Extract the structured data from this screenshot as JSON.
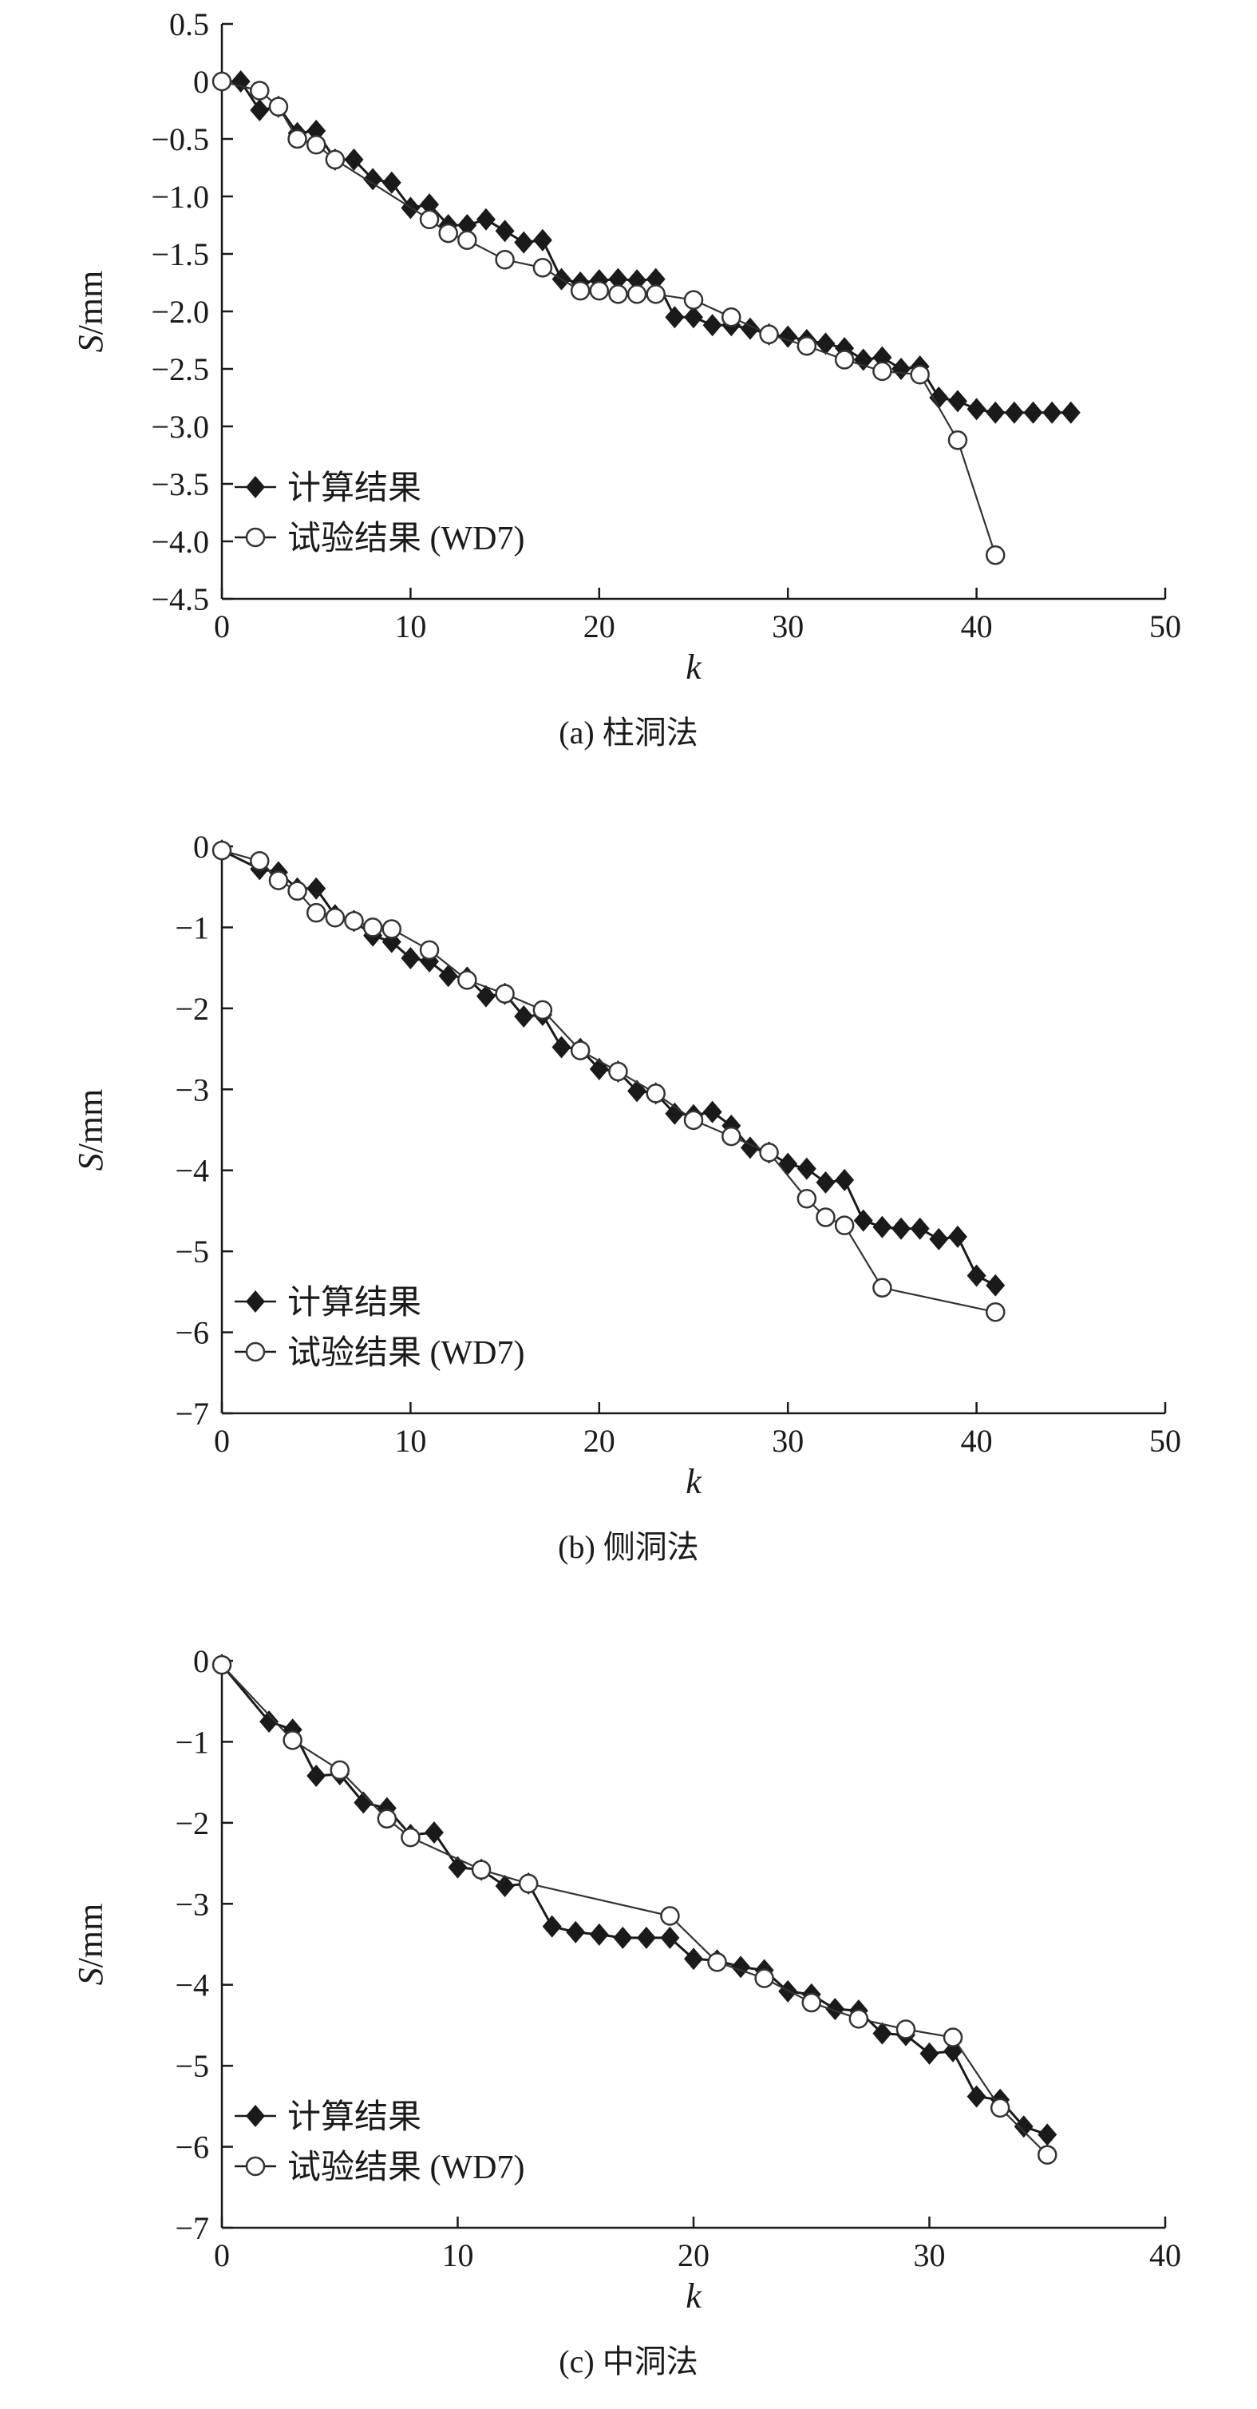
{
  "chart_data": [
    {
      "type": "line",
      "caption": "(a) 柱洞法",
      "xlabel": "k",
      "ylabel": "S/mm",
      "xlim": [
        0,
        50
      ],
      "ylim": [
        -4.5,
        0.5
      ],
      "xticks": [
        0,
        10,
        20,
        30,
        40,
        50
      ],
      "xtick_labels": [
        "0",
        "10",
        "20",
        "30",
        "40",
        "50"
      ],
      "yticks": [
        0.5,
        0,
        -0.5,
        -1.0,
        -1.5,
        -2.0,
        -2.5,
        -3.0,
        -3.5,
        -4.0,
        -4.5
      ],
      "ytick_labels": [
        "0.5",
        "0",
        "−0.5",
        "−1.0",
        "−1.5",
        "−2.0",
        "−2.5",
        "−3.0",
        "−3.5",
        "−4.0",
        "−4.5"
      ],
      "legend_position": "bottom-left",
      "series": [
        {
          "name": "计算结果",
          "marker": "filled-diamond",
          "x": [
            0,
            1,
            2,
            3,
            4,
            5,
            6,
            7,
            8,
            9,
            10,
            11,
            12,
            13,
            14,
            15,
            16,
            17,
            18,
            19,
            20,
            21,
            22,
            23,
            24,
            25,
            26,
            27,
            28,
            29,
            30,
            31,
            32,
            33,
            34,
            35,
            36,
            37,
            38,
            39,
            40,
            41,
            42,
            43,
            44,
            45
          ],
          "y": [
            0,
            0,
            -0.25,
            -0.22,
            -0.45,
            -0.43,
            -0.68,
            -0.68,
            -0.85,
            -0.88,
            -1.1,
            -1.07,
            -1.25,
            -1.25,
            -1.2,
            -1.3,
            -1.4,
            -1.38,
            -1.72,
            -1.75,
            -1.73,
            -1.72,
            -1.73,
            -1.72,
            -2.05,
            -2.05,
            -2.12,
            -2.12,
            -2.15,
            -2.2,
            -2.22,
            -2.25,
            -2.28,
            -2.32,
            -2.42,
            -2.4,
            -2.5,
            -2.48,
            -2.75,
            -2.78,
            -2.85,
            -2.88,
            -2.88,
            -2.88,
            -2.88,
            -2.88
          ]
        },
        {
          "name": "试验结果 (WD7)",
          "marker": "open-circle",
          "x": [
            0,
            2,
            3,
            4,
            5,
            6,
            11,
            12,
            13,
            15,
            17,
            19,
            20,
            21,
            22,
            23,
            25,
            27,
            29,
            31,
            33,
            35,
            37,
            39,
            41
          ],
          "y": [
            0,
            -0.08,
            -0.22,
            -0.5,
            -0.55,
            -0.68,
            -1.2,
            -1.32,
            -1.38,
            -1.55,
            -1.62,
            -1.82,
            -1.82,
            -1.85,
            -1.85,
            -1.85,
            -1.9,
            -2.05,
            -2.2,
            -2.3,
            -2.42,
            -2.52,
            -2.55,
            -3.12,
            -4.12
          ]
        }
      ]
    },
    {
      "type": "line",
      "caption": "(b) 侧洞法",
      "xlabel": "k",
      "ylabel": "S/mm",
      "xlim": [
        0,
        50
      ],
      "ylim": [
        -7,
        0
      ],
      "xticks": [
        0,
        10,
        20,
        30,
        40,
        50
      ],
      "xtick_labels": [
        "0",
        "10",
        "20",
        "30",
        "40",
        "50"
      ],
      "yticks": [
        0,
        -1,
        -2,
        -3,
        -4,
        -5,
        -6,
        -7
      ],
      "ytick_labels": [
        "0",
        "−1",
        "−2",
        "−3",
        "−4",
        "−5",
        "−6",
        "−7"
      ],
      "legend_position": "bottom-left",
      "series": [
        {
          "name": "计算结果",
          "marker": "filled-diamond",
          "x": [
            0,
            2,
            3,
            4,
            5,
            6,
            7,
            8,
            9,
            10,
            11,
            12,
            13,
            14,
            15,
            16,
            17,
            18,
            19,
            20,
            21,
            22,
            23,
            24,
            25,
            26,
            27,
            28,
            29,
            30,
            31,
            32,
            33,
            34,
            35,
            36,
            37,
            38,
            39,
            40,
            41
          ],
          "y": [
            -0.05,
            -0.28,
            -0.32,
            -0.52,
            -0.52,
            -0.85,
            -0.92,
            -1.1,
            -1.18,
            -1.38,
            -1.42,
            -1.6,
            -1.62,
            -1.85,
            -1.82,
            -2.1,
            -2.08,
            -2.48,
            -2.5,
            -2.75,
            -2.78,
            -3.02,
            -3.05,
            -3.3,
            -3.32,
            -3.28,
            -3.45,
            -3.72,
            -3.78,
            -3.92,
            -3.98,
            -4.15,
            -4.12,
            -4.62,
            -4.7,
            -4.72,
            -4.72,
            -4.85,
            -4.82,
            -5.3,
            -5.42
          ]
        },
        {
          "name": "试验结果 (WD7)",
          "marker": "open-circle",
          "x": [
            0,
            2,
            3,
            4,
            5,
            6,
            7,
            8,
            9,
            11,
            13,
            15,
            17,
            19,
            21,
            23,
            25,
            27,
            29,
            31,
            32,
            33,
            35,
            41
          ],
          "y": [
            -0.05,
            -0.18,
            -0.42,
            -0.55,
            -0.82,
            -0.88,
            -0.92,
            -1.0,
            -1.02,
            -1.28,
            -1.65,
            -1.82,
            -2.02,
            -2.52,
            -2.78,
            -3.05,
            -3.38,
            -3.58,
            -3.78,
            -4.35,
            -4.58,
            -4.68,
            -5.45,
            -5.75
          ]
        }
      ]
    },
    {
      "type": "line",
      "caption": "(c) 中洞法",
      "xlabel": "k",
      "ylabel": "S/mm",
      "xlim": [
        0,
        40
      ],
      "ylim": [
        -7,
        0
      ],
      "xticks": [
        0,
        10,
        20,
        30,
        40
      ],
      "xtick_labels": [
        "0",
        "10",
        "20",
        "30",
        "40"
      ],
      "yticks": [
        0,
        -1,
        -2,
        -3,
        -4,
        -5,
        -6,
        -7
      ],
      "ytick_labels": [
        "0",
        "−1",
        "−2",
        "−3",
        "−4",
        "−5",
        "−6",
        "−7"
      ],
      "legend_position": "bottom-left",
      "series": [
        {
          "name": "计算结果",
          "marker": "filled-diamond",
          "x": [
            0,
            2,
            3,
            4,
            5,
            6,
            7,
            8,
            9,
            10,
            11,
            12,
            13,
            14,
            15,
            16,
            17,
            18,
            19,
            20,
            21,
            22,
            23,
            24,
            25,
            26,
            27,
            28,
            29,
            30,
            31,
            32,
            33,
            34,
            35
          ],
          "y": [
            -0.05,
            -0.75,
            -0.85,
            -1.42,
            -1.4,
            -1.75,
            -1.82,
            -2.15,
            -2.12,
            -2.55,
            -2.58,
            -2.78,
            -2.75,
            -3.28,
            -3.35,
            -3.38,
            -3.42,
            -3.42,
            -3.42,
            -3.68,
            -3.7,
            -3.78,
            -3.82,
            -4.08,
            -4.12,
            -4.3,
            -4.32,
            -4.6,
            -4.62,
            -4.85,
            -4.82,
            -5.38,
            -5.42,
            -5.75,
            -5.85
          ]
        },
        {
          "name": "试验结果 (WD7)",
          "marker": "open-circle",
          "x": [
            0,
            3,
            5,
            7,
            8,
            11,
            13,
            19,
            21,
            23,
            25,
            27,
            29,
            31,
            33,
            35
          ],
          "y": [
            -0.05,
            -0.98,
            -1.35,
            -1.95,
            -2.18,
            -2.58,
            -2.75,
            -3.15,
            -3.72,
            -3.92,
            -4.22,
            -4.42,
            -4.55,
            -4.65,
            -5.52,
            -6.1
          ]
        }
      ]
    }
  ]
}
